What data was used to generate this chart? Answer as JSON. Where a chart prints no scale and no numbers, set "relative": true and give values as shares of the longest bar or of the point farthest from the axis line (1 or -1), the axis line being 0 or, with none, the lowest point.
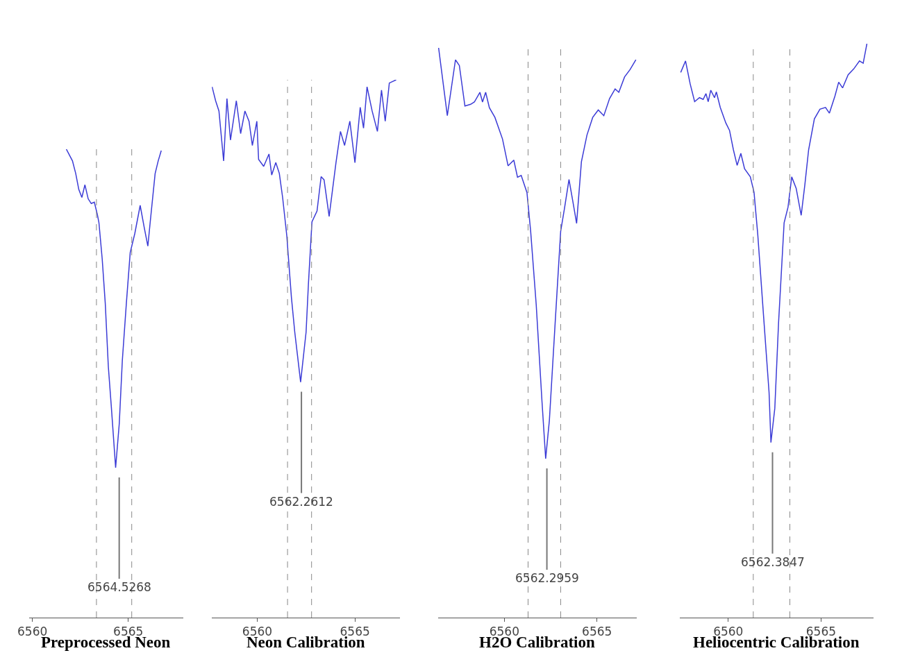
{
  "chart_data": [
    {
      "type": "line",
      "title": "Preprocessed Neon",
      "relative": true,
      "xlim": [
        6559.82,
        6567.86
      ],
      "xticks": [
        6560,
        6565
      ],
      "marker": "none",
      "line_style": "solid",
      "series": [
        {
          "color": "#3b3bd6",
          "x": [
            6561.77,
            6562.09,
            6562.26,
            6562.42,
            6562.58,
            6562.74,
            6562.91,
            6563.07,
            6563.23,
            6563.39,
            6563.47,
            6563.64,
            6563.8,
            6563.96,
            6564.12,
            6564.34,
            6564.53,
            6564.69,
            6564.9,
            6565.1,
            6565.34,
            6565.62,
            6565.83,
            6566.02,
            6566.15,
            6566.4,
            6566.56,
            6566.72
          ],
          "values": [
            1.0,
            0.975,
            0.948,
            0.914,
            0.897,
            0.924,
            0.894,
            0.884,
            0.887,
            0.86,
            0.843,
            0.766,
            0.671,
            0.536,
            0.448,
            0.32,
            0.414,
            0.549,
            0.671,
            0.779,
            0.82,
            0.88,
            0.833,
            0.793,
            0.847,
            0.948,
            0.975,
            0.997
          ]
        }
      ],
      "ref_lines": [
        {
          "axis": "x",
          "value": 6563.34,
          "color": "#888888",
          "line_style": "dashed"
        },
        {
          "axis": "x",
          "value": 6565.18,
          "color": "#888888",
          "line_style": "dashed"
        }
      ],
      "annotations": [
        {
          "text": "6564.5268",
          "x": 6564.5268,
          "y": 0.32
        }
      ]
    },
    {
      "type": "line",
      "title": "Neon Calibration",
      "relative": true,
      "xlim": [
        6557.68,
        6567.29
      ],
      "xticks": [
        6560,
        6565
      ],
      "marker": "none",
      "line_style": "solid",
      "series": [
        {
          "color": "#3b3bd6",
          "x": [
            6557.69,
            6557.87,
            6558.04,
            6558.28,
            6558.45,
            6558.63,
            6558.93,
            6559.15,
            6559.37,
            6559.58,
            6559.75,
            6559.98,
            6560.07,
            6560.33,
            6560.6,
            6560.74,
            6560.95,
            6561.13,
            6561.3,
            6561.51,
            6561.75,
            6561.92,
            6562.22,
            6562.5,
            6562.62,
            6562.8,
            6563.06,
            6563.27,
            6563.42,
            6563.68,
            6564.03,
            6564.26,
            6564.47,
            6564.74,
            6565.0,
            6565.27,
            6565.44,
            6565.62,
            6565.88,
            6566.15,
            6566.36,
            6566.55,
            6566.76,
            6567.11
          ],
          "values": [
            0.987,
            0.961,
            0.942,
            0.849,
            0.965,
            0.888,
            0.961,
            0.9,
            0.942,
            0.923,
            0.878,
            0.923,
            0.852,
            0.839,
            0.862,
            0.823,
            0.846,
            0.826,
            0.781,
            0.711,
            0.595,
            0.531,
            0.438,
            0.531,
            0.621,
            0.736,
            0.756,
            0.82,
            0.814,
            0.746,
            0.846,
            0.904,
            0.878,
            0.923,
            0.846,
            0.949,
            0.91,
            0.987,
            0.942,
            0.904,
            0.981,
            0.923,
            0.994,
            1.0
          ]
        }
      ],
      "ref_lines": [
        {
          "axis": "x",
          "value": 6561.55,
          "color": "#888888",
          "line_style": "dashed"
        },
        {
          "axis": "x",
          "value": 6562.78,
          "color": "#888888",
          "line_style": "dashed"
        }
      ],
      "annotations": [
        {
          "text": "6562.2612",
          "x": 6562.2612,
          "y": 0.438
        }
      ]
    },
    {
      "type": "line",
      "title": "H2O Calibration",
      "relative": true,
      "xlim": [
        6556.42,
        6567.15
      ],
      "xticks": [
        6560,
        6565
      ],
      "marker": "none",
      "line_style": "solid",
      "series": [
        {
          "color": "#3b3bd6",
          "x": [
            6556.45,
            6556.92,
            6557.36,
            6557.57,
            6557.87,
            6558.18,
            6558.38,
            6558.68,
            6558.82,
            6558.99,
            6559.19,
            6559.49,
            6559.9,
            6560.2,
            6560.51,
            6560.71,
            6560.91,
            6561.22,
            6561.42,
            6561.72,
            6562.03,
            6562.23,
            6562.43,
            6562.74,
            6563.04,
            6563.25,
            6563.49,
            6563.69,
            6563.9,
            6564.16,
            6564.46,
            6564.77,
            6565.07,
            6565.37,
            6565.68,
            6565.98,
            6566.18,
            6566.49,
            6566.79,
            6567.1
          ],
          "values": [
            1.0,
            0.881,
            0.979,
            0.969,
            0.898,
            0.901,
            0.905,
            0.922,
            0.905,
            0.922,
            0.895,
            0.878,
            0.84,
            0.793,
            0.803,
            0.773,
            0.776,
            0.746,
            0.678,
            0.549,
            0.38,
            0.279,
            0.346,
            0.516,
            0.678,
            0.719,
            0.769,
            0.732,
            0.692,
            0.8,
            0.847,
            0.878,
            0.891,
            0.881,
            0.911,
            0.928,
            0.922,
            0.949,
            0.962,
            0.979
          ]
        }
      ],
      "ref_lines": [
        {
          "axis": "x",
          "value": 6561.28,
          "color": "#888888",
          "line_style": "dashed"
        },
        {
          "axis": "x",
          "value": 6563.04,
          "color": "#888888",
          "line_style": "dashed"
        }
      ],
      "annotations": [
        {
          "text": "6562.2959",
          "x": 6562.2959,
          "y": 0.279
        }
      ]
    },
    {
      "type": "line",
      "title": "Heliocentric Calibration",
      "relative": true,
      "xlim": [
        6557.4,
        6567.81
      ],
      "xticks": [
        6560,
        6565
      ],
      "marker": "none",
      "line_style": "solid",
      "series": [
        {
          "color": "#3b3bd6",
          "x": [
            6557.44,
            6557.7,
            6557.95,
            6558.19,
            6558.45,
            6558.65,
            6558.8,
            6558.92,
            6559.06,
            6559.26,
            6559.36,
            6559.57,
            6559.87,
            6560.07,
            6560.28,
            6560.48,
            6560.68,
            6560.88,
            6561.19,
            6561.39,
            6561.59,
            6561.9,
            6562.2,
            6562.3,
            6562.51,
            6562.71,
            6563.01,
            6563.22,
            6563.42,
            6563.66,
            6563.93,
            6564.13,
            6564.33,
            6564.64,
            6564.94,
            6565.24,
            6565.45,
            6565.75,
            6565.95,
            6566.16,
            6566.46,
            6566.76,
            6567.07,
            6567.27,
            6567.47
          ],
          "values": [
            0.95,
            0.97,
            0.93,
            0.899,
            0.906,
            0.903,
            0.913,
            0.899,
            0.919,
            0.906,
            0.916,
            0.889,
            0.862,
            0.849,
            0.815,
            0.788,
            0.809,
            0.782,
            0.768,
            0.741,
            0.668,
            0.527,
            0.392,
            0.305,
            0.365,
            0.513,
            0.688,
            0.715,
            0.768,
            0.748,
            0.701,
            0.755,
            0.815,
            0.869,
            0.886,
            0.889,
            0.879,
            0.909,
            0.933,
            0.923,
            0.946,
            0.956,
            0.97,
            0.966,
            1.0
          ]
        }
      ],
      "ref_lines": [
        {
          "axis": "x",
          "value": 6561.35,
          "color": "#888888",
          "line_style": "dashed"
        },
        {
          "axis": "x",
          "value": 6563.32,
          "color": "#888888",
          "line_style": "dashed"
        }
      ],
      "annotations": [
        {
          "text": "6562.3847",
          "x": 6562.3847,
          "y": 0.305
        }
      ]
    }
  ]
}
